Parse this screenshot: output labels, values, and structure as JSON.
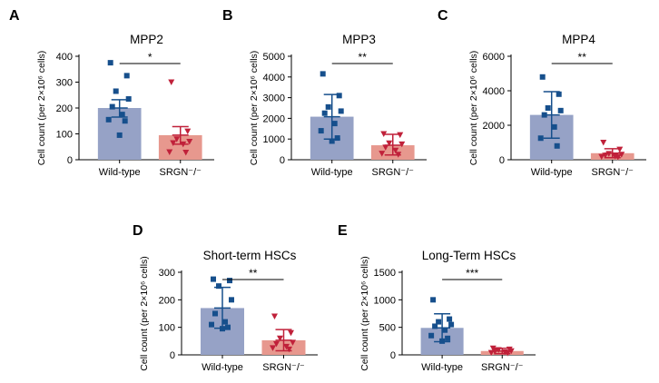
{
  "colors": {
    "wildtype_fill": "#96a2c6",
    "wildtype_point": "#164f8c",
    "srgn_fill": "#e7988e",
    "srgn_point": "#c0213a",
    "axis": "#000000",
    "errorbar_wt": "#164f8c",
    "errorbar_srgn": "#c0213a"
  },
  "chart_data": [
    {
      "panel": "A",
      "title": "MPP2",
      "type": "bar",
      "ylabel": "Cell count (per 2×10⁶ cells)",
      "ylim": [
        0,
        400
      ],
      "yticks": [
        0,
        100,
        200,
        300,
        400
      ],
      "categories": [
        "Wild-type",
        "SRGN⁻/⁻"
      ],
      "series": [
        {
          "name": "Wild-type",
          "mean": 200,
          "sd_low": 165,
          "sd_high": 232,
          "points": [
            375,
            325,
            265,
            235,
            205,
            175,
            155,
            150,
            95
          ]
        },
        {
          "name": "SRGN⁻/⁻",
          "mean": 95,
          "sd_low": 60,
          "sd_high": 128,
          "points": [
            300,
            110,
            80,
            70,
            65,
            60,
            30,
            28
          ]
        }
      ],
      "significance": "*"
    },
    {
      "panel": "B",
      "title": "MPP3",
      "type": "bar",
      "ylabel": "Cell count (per 2×10⁶ cells)",
      "ylim": [
        0,
        5000
      ],
      "yticks": [
        0,
        1000,
        2000,
        3000,
        4000,
        5000
      ],
      "categories": [
        "Wild-type",
        "SRGN⁻/⁻"
      ],
      "series": [
        {
          "name": "Wild-type",
          "mean": 2080,
          "sd_low": 1000,
          "sd_high": 3150,
          "points": [
            4150,
            3100,
            2550,
            2350,
            2250,
            1750,
            1400,
            1050,
            900
          ]
        },
        {
          "name": "SRGN⁻/⁻",
          "mean": 700,
          "sd_low": 230,
          "sd_high": 1230,
          "points": [
            1250,
            1200,
            800,
            750,
            600,
            450,
            300,
            250
          ]
        }
      ],
      "significance": "**"
    },
    {
      "panel": "C",
      "title": "MPP4",
      "type": "bar",
      "ylabel": "Cell count (per 2×10⁶ cells)",
      "ylim": [
        0,
        6000
      ],
      "yticks": [
        0,
        2000,
        4000,
        6000
      ],
      "categories": [
        "Wild-type",
        "SRGN⁻/⁻"
      ],
      "series": [
        {
          "name": "Wild-type",
          "mean": 2600,
          "sd_low": 1250,
          "sd_high": 3950,
          "points": [
            4800,
            3800,
            3000,
            2850,
            2600,
            1900,
            1250,
            800
          ]
        },
        {
          "name": "SRGN⁻/⁻",
          "mean": 380,
          "sd_low": 120,
          "sd_high": 640,
          "points": [
            1000,
            600,
            350,
            300,
            250,
            200,
            180,
            150
          ]
        }
      ],
      "significance": "**"
    },
    {
      "panel": "D",
      "title": "Short-term HSCs",
      "type": "bar",
      "ylabel": "Cell count (per 2×10⁶ cells)",
      "ylim": [
        0,
        300
      ],
      "yticks": [
        0,
        100,
        200,
        300
      ],
      "categories": [
        "Wild-type",
        "SRGN⁻/⁻"
      ],
      "series": [
        {
          "name": "Wild-type",
          "mean": 170,
          "sd_low": 97,
          "sd_high": 245,
          "points": [
            275,
            270,
            250,
            200,
            150,
            120,
            110,
            100,
            95
          ]
        },
        {
          "name": "SRGN⁻/⁻",
          "mean": 53,
          "sd_low": 15,
          "sd_high": 92,
          "points": [
            140,
            80,
            60,
            45,
            40,
            30,
            25,
            20
          ]
        }
      ],
      "significance": "**"
    },
    {
      "panel": "E",
      "title": "Long-Term HSCs",
      "type": "bar",
      "ylabel": "Cell count (per 2×10⁶ cells)",
      "ylim": [
        0,
        1500
      ],
      "yticks": [
        0,
        500,
        1000,
        1500
      ],
      "categories": [
        "Wild-type",
        "SRGN⁻/⁻"
      ],
      "series": [
        {
          "name": "Wild-type",
          "mean": 490,
          "sd_low": 240,
          "sd_high": 745,
          "points": [
            1000,
            650,
            600,
            550,
            520,
            450,
            350,
            300,
            250
          ]
        },
        {
          "name": "SRGN⁻/⁻",
          "mean": 70,
          "sd_low": 20,
          "sd_high": 120,
          "points": [
            120,
            100,
            90,
            70,
            60,
            50,
            40,
            30
          ]
        }
      ],
      "significance": "***"
    }
  ]
}
